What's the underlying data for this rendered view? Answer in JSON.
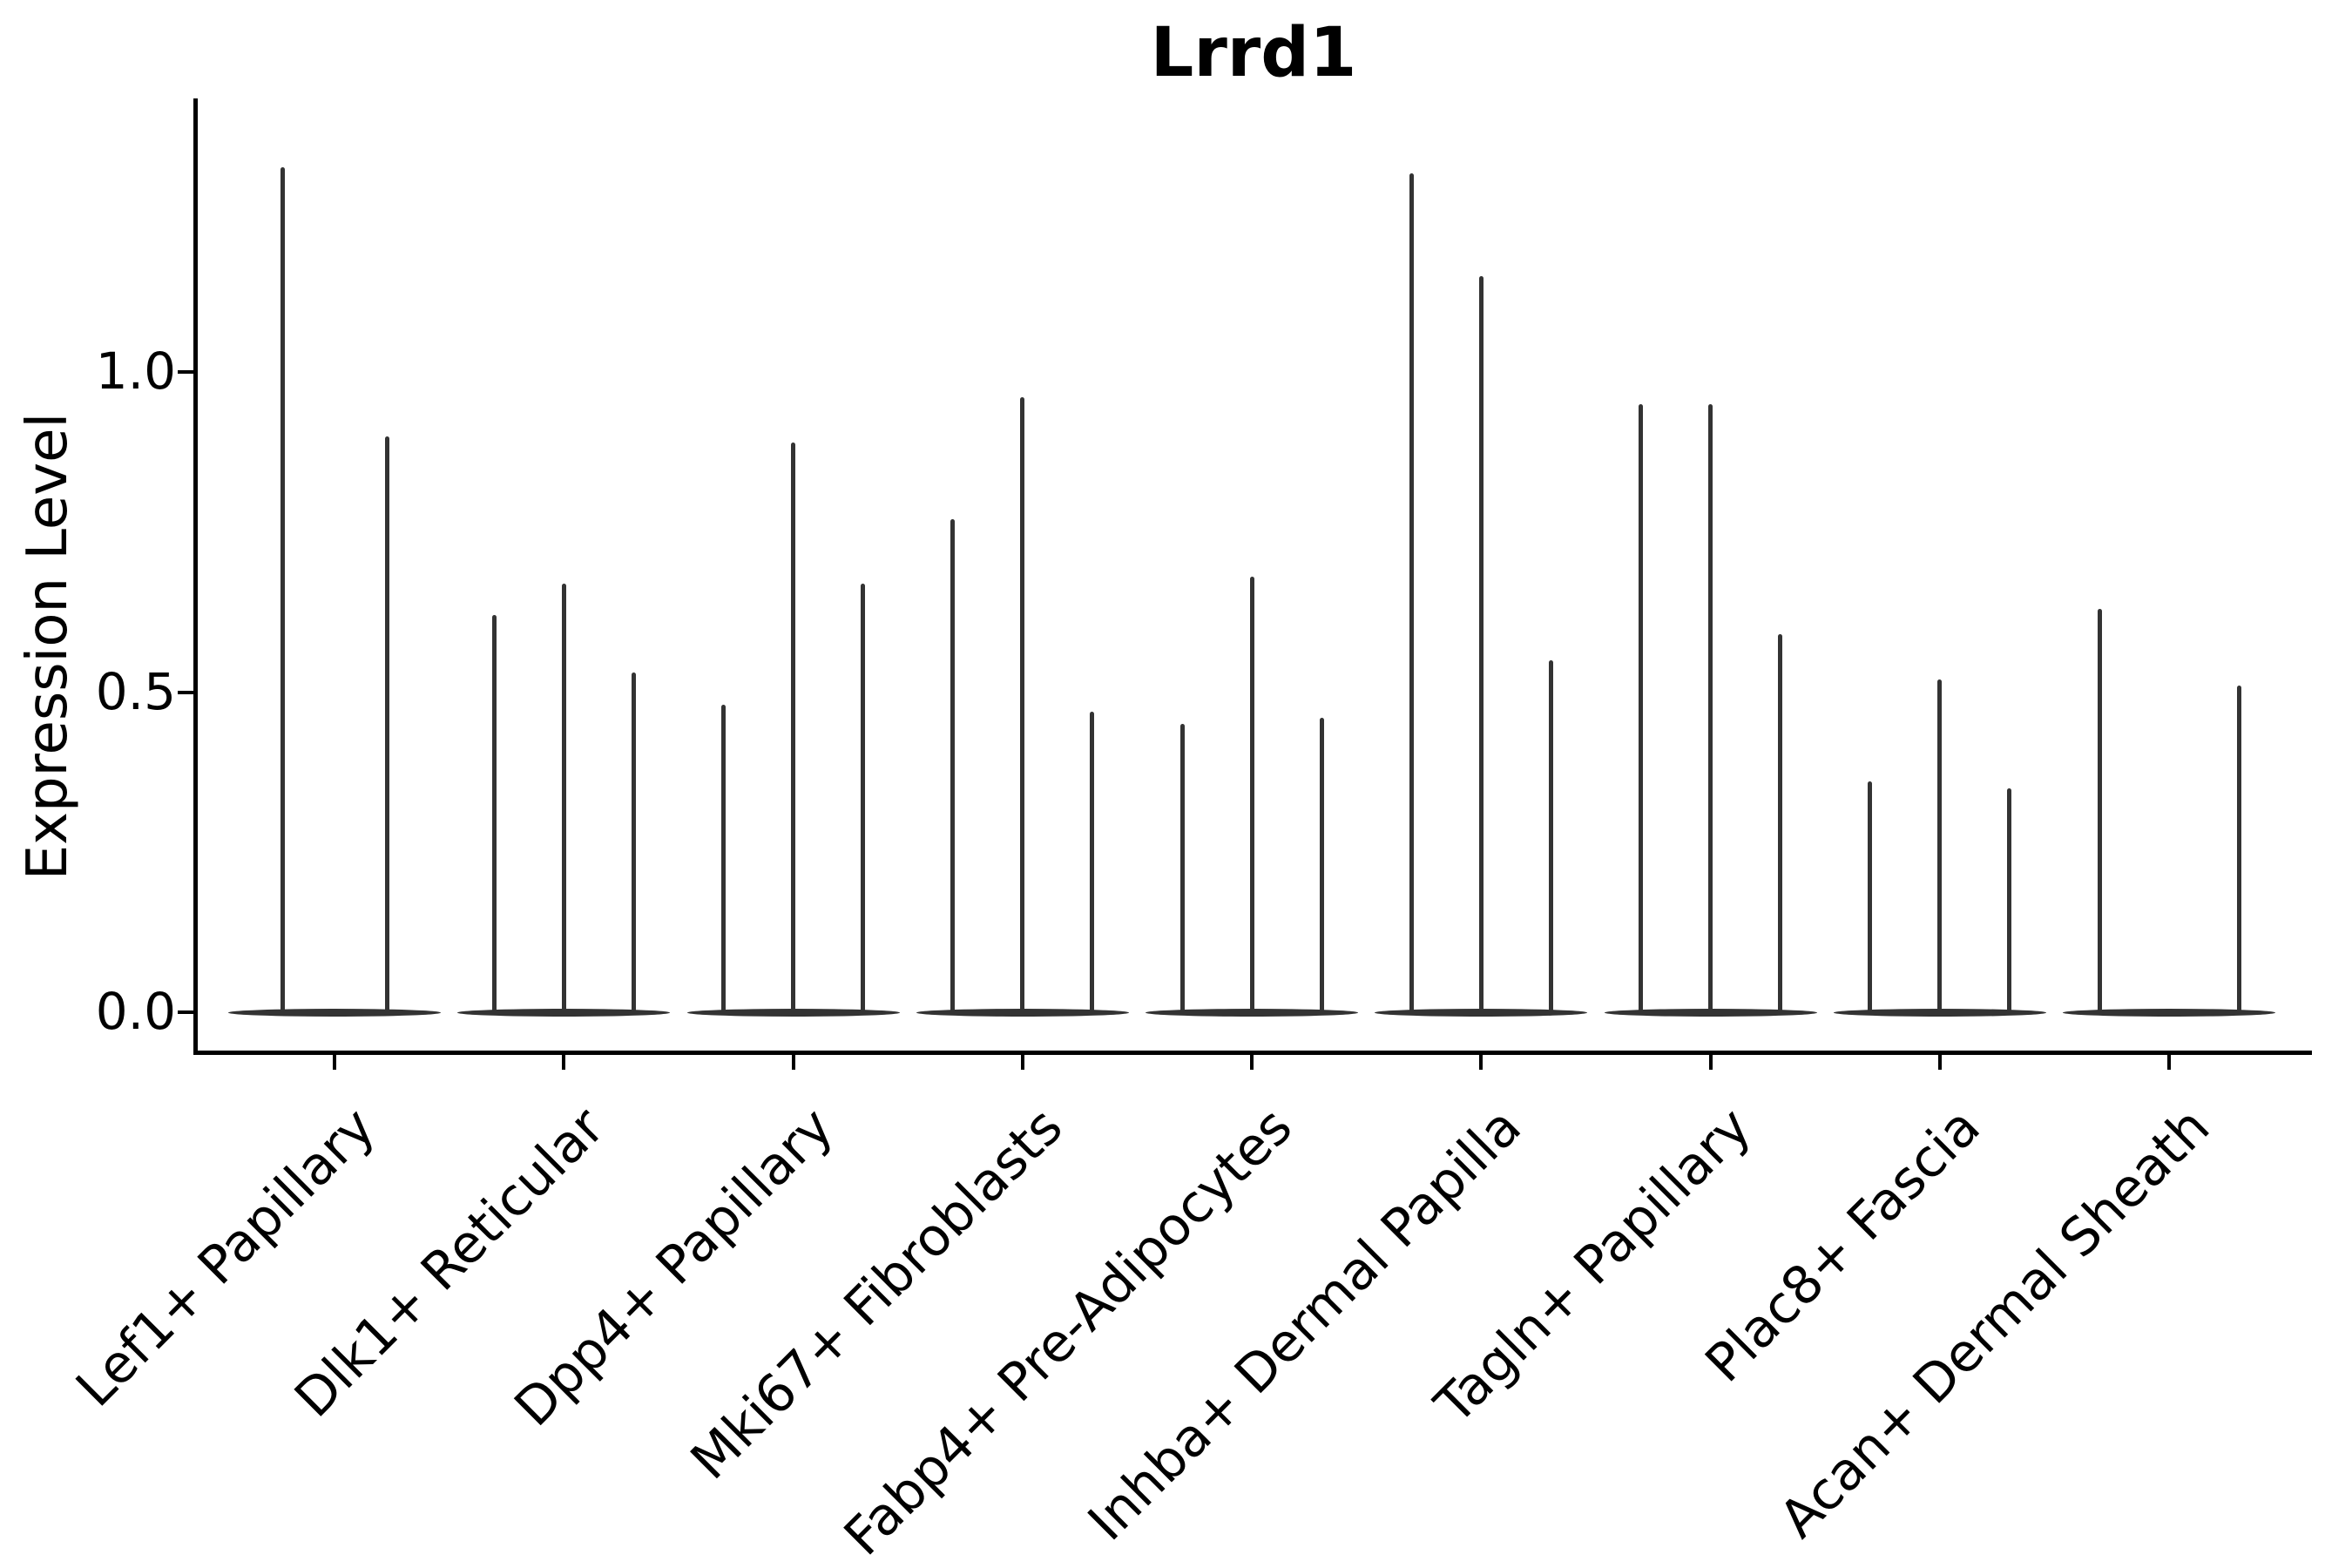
{
  "figure": {
    "title": "Lrrd1"
  },
  "y_axis": {
    "label": "Expression Level",
    "tick_labels": [
      "0.0",
      "0.5",
      "1.0"
    ]
  },
  "chart_data": {
    "type": "violin",
    "title": "Lrrd1",
    "xlabel": "",
    "ylabel": "Expression Level",
    "ylim": [
      -0.07,
      1.42
    ],
    "yticks": [
      0.0,
      0.5,
      1.0
    ],
    "grid": false,
    "legend_position": "none",
    "style_note": "sparse single-cell expression violins: each category shows a flat lens-shaped mass at 0 with 2-3 thin spikes reaching the maximum expression of each sub-violin",
    "categories": [
      "Lef1+ Papillary",
      "Dlk1+ Reticular",
      "Dpp4+ Papillary",
      "Mki67+ Fibroblasts",
      "Fabp4+ Pre-Adipocytes",
      "Inhba+ Dermal Papilla",
      "Tagln+ Papillary",
      "Plac8+ Fascia",
      "Acan+ Dermal Sheath"
    ],
    "violins": [
      {
        "category": "Lef1+ Papillary",
        "spikes": [
          {
            "dx": -60,
            "max": 1.32
          },
          {
            "dx": 60,
            "max": 0.9
          }
        ]
      },
      {
        "category": "Dlk1+ Reticular",
        "spikes": [
          {
            "dx": -80,
            "max": 0.62
          },
          {
            "dx": 0,
            "max": 0.67
          },
          {
            "dx": 80,
            "max": 0.53
          }
        ]
      },
      {
        "category": "Dpp4+ Papillary",
        "spikes": [
          {
            "dx": -80,
            "max": 0.48
          },
          {
            "dx": 0,
            "max": 0.89
          },
          {
            "dx": 80,
            "max": 0.67
          }
        ]
      },
      {
        "category": "Mki67+ Fibroblasts",
        "spikes": [
          {
            "dx": -80,
            "max": 0.77
          },
          {
            "dx": 0,
            "max": 0.96
          },
          {
            "dx": 80,
            "max": 0.47
          }
        ]
      },
      {
        "category": "Fabp4+ Pre-Adipocytes",
        "spikes": [
          {
            "dx": -80,
            "max": 0.45
          },
          {
            "dx": 0,
            "max": 0.68
          },
          {
            "dx": 80,
            "max": 0.46
          }
        ]
      },
      {
        "category": "Inhba+ Dermal Papilla",
        "spikes": [
          {
            "dx": -80,
            "max": 1.31
          },
          {
            "dx": 0,
            "max": 1.15
          },
          {
            "dx": 80,
            "max": 0.55
          }
        ]
      },
      {
        "category": "Tagln+ Papillary",
        "spikes": [
          {
            "dx": -80,
            "max": 0.95
          },
          {
            "dx": 0,
            "max": 0.95
          },
          {
            "dx": 80,
            "max": 0.59
          }
        ]
      },
      {
        "category": "Plac8+ Fascia",
        "spikes": [
          {
            "dx": -80,
            "max": 0.36
          },
          {
            "dx": 0,
            "max": 0.52
          },
          {
            "dx": 80,
            "max": 0.35
          }
        ]
      },
      {
        "category": "Acan+ Dermal Sheath",
        "spikes": [
          {
            "dx": -80,
            "max": 0.63
          },
          {
            "dx": 80,
            "max": 0.51
          }
        ]
      }
    ],
    "colors": {
      "violin": "#333333",
      "axes": "#000000",
      "text": "#000000",
      "background": "#ffffff"
    }
  }
}
